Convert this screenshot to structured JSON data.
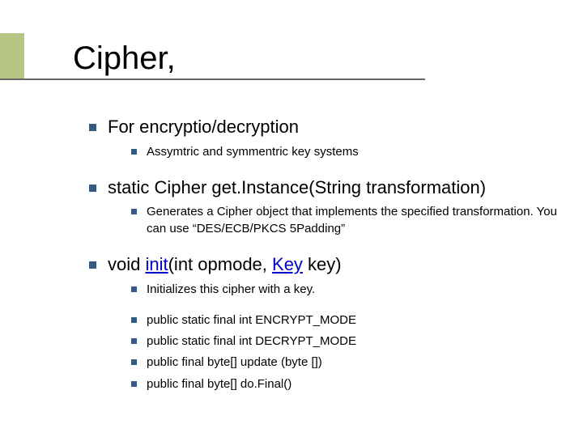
{
  "title": "Cipher,",
  "colors": {
    "bullet": "#375a7e",
    "underline": "#666666",
    "accent_bar": "#b7c585",
    "link": "#0000cc",
    "text": "#000000",
    "background": "#ffffff"
  },
  "typography": {
    "title_fontsize": 40,
    "level1_fontsize": 22,
    "level2_fontsize": 15,
    "font_family": "Verdana"
  },
  "items": [
    {
      "text": "For encryptio/decryption",
      "sub": [
        {
          "text": "Assymtric and symmentric key systems"
        }
      ]
    },
    {
      "text": "static Cipher get.Instance(String transformation)",
      "sub": [
        {
          "text": "Generates a Cipher object that implements the specified transformation. You can use “DES/ECB/PKCS 5Padding”"
        }
      ]
    },
    {
      "prefix": "void ",
      "link1": "init",
      "mid": "(int opmode, ",
      "link2": "Key",
      "suffix": " key)",
      "sub": [
        {
          "text": "Initializes this cipher with a key."
        },
        {
          "spacer": true
        },
        {
          "text": "public static final int ENCRYPT_MODE"
        },
        {
          "text": "public static final int DECRYPT_MODE"
        },
        {
          "text": "public final byte[] update (byte [])"
        },
        {
          "text": "public final byte[] do.Final()"
        }
      ]
    }
  ]
}
